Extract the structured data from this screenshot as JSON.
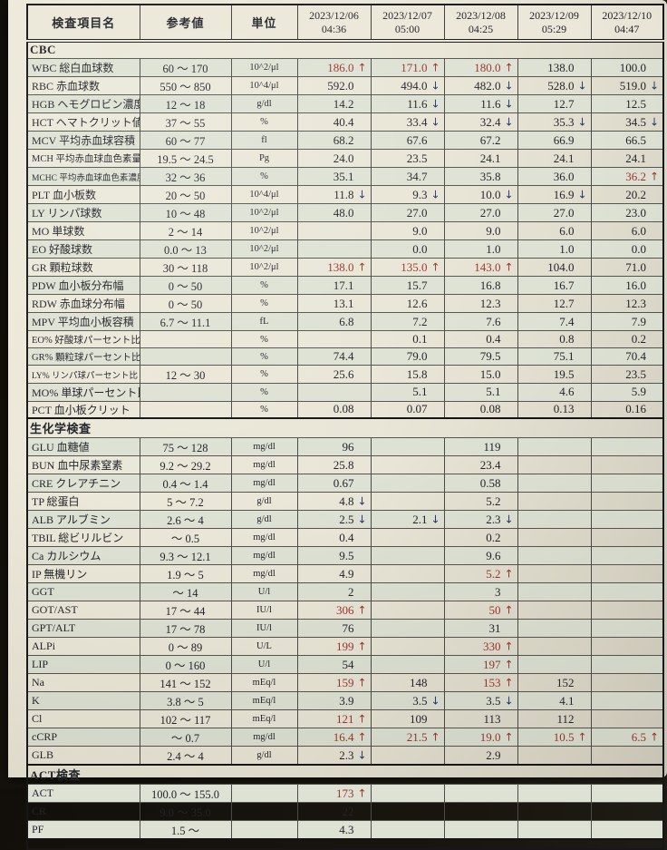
{
  "colors": {
    "high": "#9c342c",
    "low": "#2b3570",
    "ink": "#23232a",
    "paper": "#e9e6d7",
    "row_tint": "#dde2d4"
  },
  "header": {
    "name_col": "検査項目名",
    "ref_col": "参考値",
    "unit_col": "単位",
    "dates": [
      {
        "date": "2023/12/06",
        "time": "04:36"
      },
      {
        "date": "2023/12/07",
        "time": "05:00"
      },
      {
        "date": "2023/12/08",
        "time": "04:25"
      },
      {
        "date": "2023/12/09",
        "time": "05:29"
      },
      {
        "date": "2023/12/10",
        "time": "04:47"
      }
    ]
  },
  "sections": [
    {
      "title": "CBC",
      "rows": [
        {
          "name": "WBC 総白血球数",
          "ref": "60 〜 170",
          "unit": "10^2/μl",
          "values": [
            "186.0↑",
            "171.0↑",
            "180.0↑",
            "138.0",
            "100.0"
          ]
        },
        {
          "name": "RBC 赤血球数",
          "ref": "550 〜 850",
          "unit": "10^4/μl",
          "values": [
            "592.0",
            "494.0↓",
            "482.0↓",
            "528.0↓",
            "519.0↓"
          ]
        },
        {
          "name": "HGB ヘモグロビン濃度",
          "ref": "12 〜 18",
          "unit": "g/dl",
          "values": [
            "14.2",
            "11.6↓",
            "11.6↓",
            "12.7",
            "12.5"
          ]
        },
        {
          "name": "HCT ヘマトクリット値",
          "ref": "37 〜 55",
          "unit": "%",
          "values": [
            "40.4",
            "33.4↓",
            "32.4↓",
            "35.3↓",
            "34.5↓"
          ]
        },
        {
          "name": "MCV 平均赤血球容積",
          "ref": "60 〜 77",
          "unit": "fl",
          "values": [
            "68.2",
            "67.6",
            "67.2",
            "66.9",
            "66.5"
          ]
        },
        {
          "name": "MCH 平均赤血球血色素量",
          "ref": "19.5 〜 24.5",
          "unit": "Pg",
          "values": [
            "24.0",
            "23.5",
            "24.1",
            "24.1",
            "24.1"
          ]
        },
        {
          "name": "MCHC 平均赤血球血色素濃度",
          "ref": "32 〜 36",
          "unit": "%",
          "values": [
            "35.1",
            "34.7",
            "35.8",
            "36.0",
            "36.2↑"
          ]
        },
        {
          "name": "PLT 血小板数",
          "ref": "20 〜 50",
          "unit": "10^4/μl",
          "values": [
            "11.8↓",
            "9.3↓",
            "10.0↓",
            "16.9↓",
            "20.2"
          ]
        },
        {
          "name": "LY リンパ球数",
          "ref": "10 〜 48",
          "unit": "10^2/μl",
          "values": [
            "48.0",
            "27.0",
            "27.0",
            "27.0",
            "23.0"
          ]
        },
        {
          "name": "MO 単球数",
          "ref": "2 〜 14",
          "unit": "10^2/μl",
          "values": [
            "",
            "9.0",
            "9.0",
            "6.0",
            "6.0"
          ]
        },
        {
          "name": "EO 好酸球数",
          "ref": "0.0 〜 13",
          "unit": "10^2/μl",
          "values": [
            "",
            "0.0",
            "1.0",
            "1.0",
            "0.0"
          ]
        },
        {
          "name": "GR 顆粒球数",
          "ref": "30 〜 118",
          "unit": "10^2/μl",
          "values": [
            "138.0↑",
            "135.0↑",
            "143.0↑",
            "104.0",
            "71.0"
          ]
        },
        {
          "name": "PDW 血小板分布幅",
          "ref": "0 〜 50",
          "unit": "%",
          "values": [
            "17.1",
            "15.7",
            "16.8",
            "16.7",
            "16.0"
          ]
        },
        {
          "name": "RDW 赤血球分布幅",
          "ref": "0 〜 50",
          "unit": "%",
          "values": [
            "13.1",
            "12.6",
            "12.3",
            "12.7",
            "12.3"
          ]
        },
        {
          "name": "MPV 平均血小板容積",
          "ref": "6.7 〜 11.1",
          "unit": "fL",
          "values": [
            "6.8",
            "7.2",
            "7.6",
            "7.4",
            "7.9"
          ]
        },
        {
          "name": "EO% 好酸球パーセント比",
          "ref": "",
          "unit": "%",
          "values": [
            "",
            "0.1",
            "0.4",
            "0.8",
            "0.2"
          ]
        },
        {
          "name": "GR% 顆粒球パーセント比",
          "ref": "",
          "unit": "%",
          "values": [
            "74.4",
            "79.0",
            "79.5",
            "75.1",
            "70.4"
          ]
        },
        {
          "name": "LY% リンパ球パーセント比",
          "ref": "12 〜 30",
          "unit": "%",
          "values": [
            "25.6",
            "15.8",
            "15.0",
            "19.5",
            "23.5"
          ]
        },
        {
          "name": "MO% 単球パーセント比",
          "ref": "",
          "unit": "%",
          "values": [
            "",
            "5.1",
            "5.1",
            "4.6",
            "5.9"
          ]
        },
        {
          "name": "PCT 血小板クリット",
          "ref": "",
          "unit": "%",
          "values": [
            "0.08",
            "0.07",
            "0.08",
            "0.13",
            "0.16"
          ]
        }
      ]
    },
    {
      "title": "生化学検査",
      "rows": [
        {
          "name": "GLU 血糖値",
          "ref": "75 〜 128",
          "unit": "mg/dl",
          "values": [
            "96",
            "",
            "119",
            "",
            ""
          ]
        },
        {
          "name": "BUN 血中尿素窒素",
          "ref": "9.2 〜 29.2",
          "unit": "mg/dl",
          "values": [
            "25.8",
            "",
            "23.4",
            "",
            ""
          ]
        },
        {
          "name": "CRE クレアチニン",
          "ref": "0.4 〜 1.4",
          "unit": "mg/dl",
          "values": [
            "0.67",
            "",
            "0.58",
            "",
            ""
          ]
        },
        {
          "name": "TP 総蛋白",
          "ref": "5 〜 7.2",
          "unit": "g/dl",
          "values": [
            "4.8↓",
            "",
            "5.2",
            "",
            ""
          ]
        },
        {
          "name": "ALB アルブミン",
          "ref": "2.6 〜 4",
          "unit": "g/dl",
          "values": [
            "2.5↓",
            "2.1↓",
            "2.3↓",
            "",
            ""
          ]
        },
        {
          "name": "TBIL 総ビリルビン",
          "ref": "〜 0.5",
          "unit": "mg/dl",
          "values": [
            "0.4",
            "",
            "0.2",
            "",
            ""
          ]
        },
        {
          "name": "Ca カルシウム",
          "ref": "9.3 〜 12.1",
          "unit": "mg/dl",
          "values": [
            "9.5",
            "",
            "9.6",
            "",
            ""
          ]
        },
        {
          "name": "IP 無機リン",
          "ref": "1.9 〜 5",
          "unit": "mg/dl",
          "values": [
            "4.9",
            "",
            "5.2↑",
            "",
            ""
          ]
        },
        {
          "name": "GGT",
          "ref": "〜 14",
          "unit": "U/l",
          "values": [
            "2",
            "",
            "3",
            "",
            ""
          ]
        },
        {
          "name": "GOT/AST",
          "ref": "17 〜 44",
          "unit": "IU/l",
          "values": [
            "306↑",
            "",
            "50↑",
            "",
            ""
          ]
        },
        {
          "name": "GPT/ALT",
          "ref": "17 〜 78",
          "unit": "IU/l",
          "values": [
            "76",
            "",
            "31",
            "",
            ""
          ]
        },
        {
          "name": "ALPi",
          "ref": "0 〜 89",
          "unit": "U/L",
          "values": [
            "199↑",
            "",
            "330↑",
            "",
            ""
          ]
        },
        {
          "name": "LIP",
          "ref": "0 〜 160",
          "unit": "U/l",
          "values": [
            "54",
            "",
            "197↑",
            "",
            ""
          ]
        },
        {
          "name": "Na",
          "ref": "141 〜 152",
          "unit": "mEq/l",
          "values": [
            "159↑",
            "148",
            "153↑",
            "152",
            ""
          ]
        },
        {
          "name": "K",
          "ref": "3.8 〜 5",
          "unit": "mEq/l",
          "values": [
            "3.9",
            "3.5↓",
            "3.5↓",
            "4.1",
            ""
          ]
        },
        {
          "name": "Cl",
          "ref": "102 〜 117",
          "unit": "mEq/l",
          "values": [
            "121↑",
            "109",
            "113",
            "112",
            ""
          ]
        },
        {
          "name": "cCRP",
          "ref": "〜 0.7",
          "unit": "mg/dl",
          "values": [
            "16.4↑",
            "21.5↑",
            "19.0↑",
            "10.5↑",
            "6.5↑"
          ]
        },
        {
          "name": "GLB",
          "ref": "2.4 〜 4",
          "unit": "g/dl",
          "values": [
            "2.3↓",
            "",
            "2.9",
            "",
            ""
          ]
        }
      ]
    },
    {
      "title": "ACT検査",
      "rows": [
        {
          "name": "ACT",
          "ref": "100.0 〜 155.0",
          "unit": "",
          "values": [
            "173↑",
            "",
            "",
            "",
            ""
          ]
        },
        {
          "name": "CR",
          "ref": "9.0 〜 35.0",
          "unit": "",
          "values": [
            "22",
            "",
            "",
            "",
            ""
          ]
        },
        {
          "name": "PF",
          "ref": "1.5 〜",
          "unit": "",
          "values": [
            "4.3",
            "",
            "",
            "",
            ""
          ]
        }
      ]
    }
  ],
  "icons": {
    "high_arrow": "↑",
    "low_arrow": "↓"
  }
}
